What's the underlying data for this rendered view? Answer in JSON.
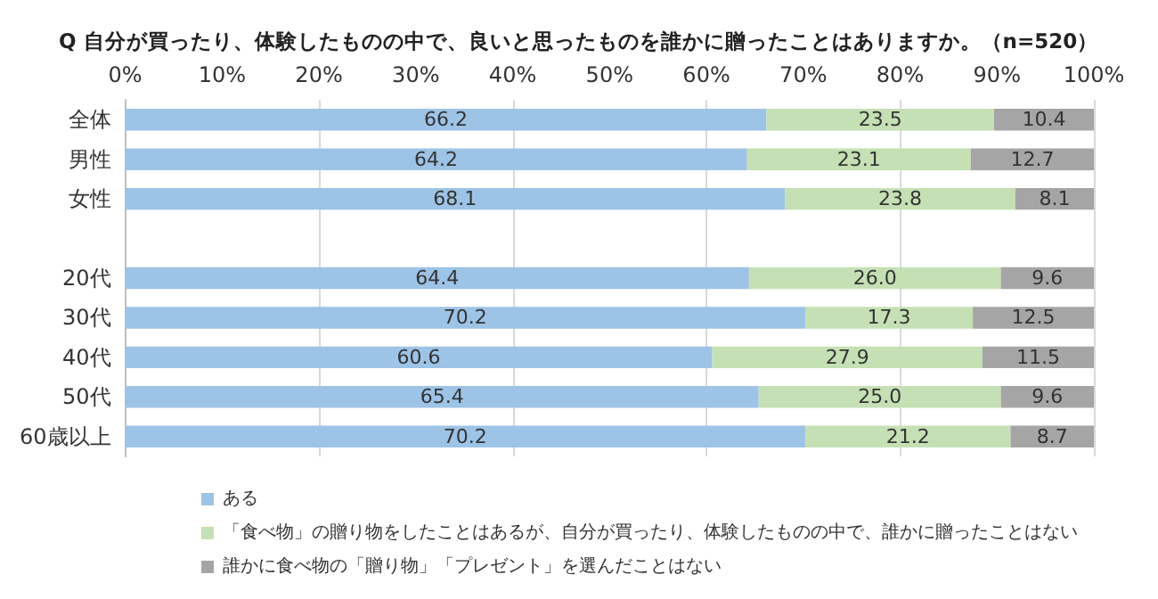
{
  "chart_data": {
    "type": "bar",
    "orientation": "horizontal",
    "stacked": true,
    "title": "Q 自分が買ったり、体験したものの中で、良いと思ったものを誰かに贈ったことはありますか。（n=520）",
    "categories": [
      "全体",
      "男性",
      "女性",
      null,
      "20代",
      "30代",
      "40代",
      "50代",
      "60歳以上"
    ],
    "series": [
      {
        "name": "ある",
        "color": "#9dc3e6",
        "values": [
          66.2,
          64.2,
          68.1,
          null,
          64.4,
          70.2,
          60.6,
          65.4,
          70.2
        ],
        "value_labels": [
          "66.2",
          "64.2",
          "68.1",
          null,
          "64.4",
          "70.2",
          "60.6",
          "65.4",
          "70.2"
        ]
      },
      {
        "name": "「食べ物」の贈り物をしたことはあるが、自分が買ったり、体験したものの中で、誰かに贈ったことはない",
        "color": "#c5e0b4",
        "values": [
          23.5,
          23.1,
          23.8,
          null,
          26.0,
          17.3,
          27.9,
          25.0,
          21.2
        ],
        "value_labels": [
          "23.5",
          "23.1",
          "23.8",
          null,
          "26.0",
          "17.3",
          "27.9",
          "25.0",
          "21.2"
        ]
      },
      {
        "name": "誰かに食べ物の「贈り物」「プレゼント」を選んだことはない",
        "color": "#a5a5a5",
        "values": [
          10.4,
          12.7,
          8.1,
          null,
          9.6,
          12.5,
          11.5,
          9.6,
          8.7
        ],
        "value_labels": [
          "10.4",
          "12.7",
          "8.1",
          null,
          "9.6",
          "12.5",
          "11.5",
          "9.6",
          "8.7"
        ]
      }
    ],
    "xlim": [
      0,
      100
    ],
    "xticks": [
      {
        "value": 0,
        "label": "0%"
      },
      {
        "value": 10,
        "label": "10%"
      },
      {
        "value": 20,
        "label": "20%"
      },
      {
        "value": 30,
        "label": "30%"
      },
      {
        "value": 40,
        "label": "40%"
      },
      {
        "value": 50,
        "label": "50%"
      },
      {
        "value": 60,
        "label": "60%"
      },
      {
        "value": 70,
        "label": "70%"
      },
      {
        "value": 80,
        "label": "80%"
      },
      {
        "value": 90,
        "label": "90%"
      },
      {
        "value": 100,
        "label": "100%"
      }
    ],
    "grid": "x",
    "legend": "bottom left"
  }
}
